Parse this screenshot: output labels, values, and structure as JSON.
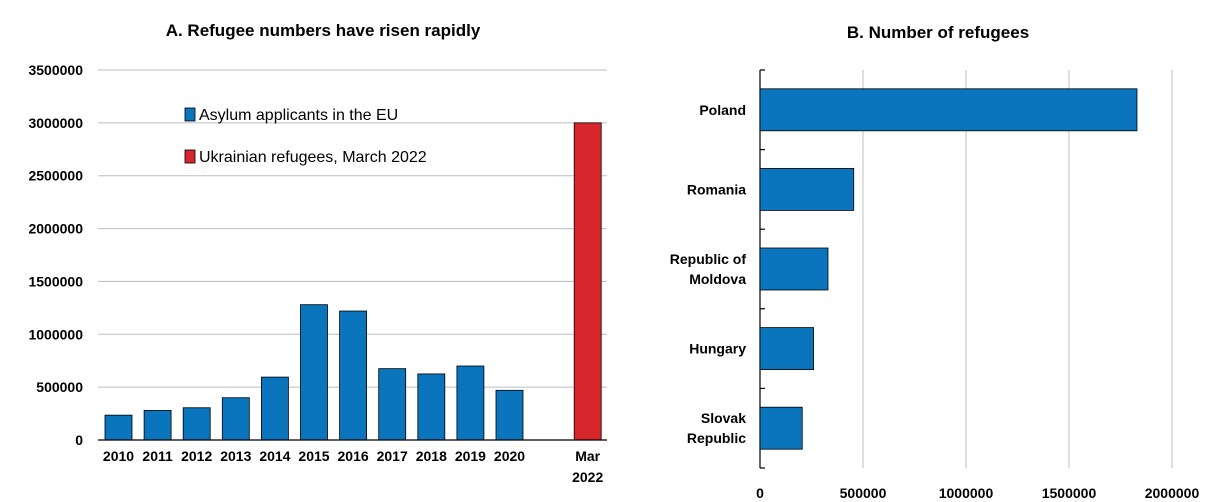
{
  "colors": {
    "asylum": "#0a75bd",
    "ukraine": "#d7262c",
    "grid": "#bdbdbd"
  },
  "chart_data": [
    {
      "type": "bar",
      "title": "A. Refugee numbers have risen rapidly",
      "categories": [
        "2010",
        "2011",
        "2012",
        "2013",
        "2014",
        "2015",
        "2016",
        "2017",
        "2018",
        "2019",
        "2020",
        "",
        "Mar 2022"
      ],
      "series": [
        {
          "name": "Asylum applicants in the EU",
          "values": [
            235000,
            280000,
            305000,
            400000,
            595000,
            1280000,
            1220000,
            675000,
            625000,
            700000,
            470000,
            null,
            null
          ]
        },
        {
          "name": "Ukrainian refugees, March 2022",
          "values": [
            null,
            null,
            null,
            null,
            null,
            null,
            null,
            null,
            null,
            null,
            null,
            null,
            3000000
          ]
        }
      ],
      "ylim": [
        0,
        3500000
      ],
      "yticks": [
        "0",
        "500000",
        "1000000",
        "1500000",
        "2000000",
        "2500000",
        "3000000",
        "3500000"
      ],
      "grid": true,
      "legend": "top-center"
    },
    {
      "type": "bar",
      "orientation": "horizontal",
      "title": "B. Number of refugees",
      "categories": [
        "Poland",
        "Romania",
        "Republic of Moldova",
        "Hungary",
        "Slovak Republic"
      ],
      "category_lines": [
        [
          "Poland"
        ],
        [
          "Romania"
        ],
        [
          "Republic of",
          "Moldova"
        ],
        [
          "Hungary"
        ],
        [
          "Slovak",
          "Republic"
        ]
      ],
      "values": [
        1830000,
        455000,
        330000,
        260000,
        205000
      ],
      "xlim": [
        0,
        2000000
      ],
      "xticks": [
        "0",
        "500000",
        "1000000",
        "1500000",
        "2000000"
      ],
      "grid": true
    }
  ]
}
